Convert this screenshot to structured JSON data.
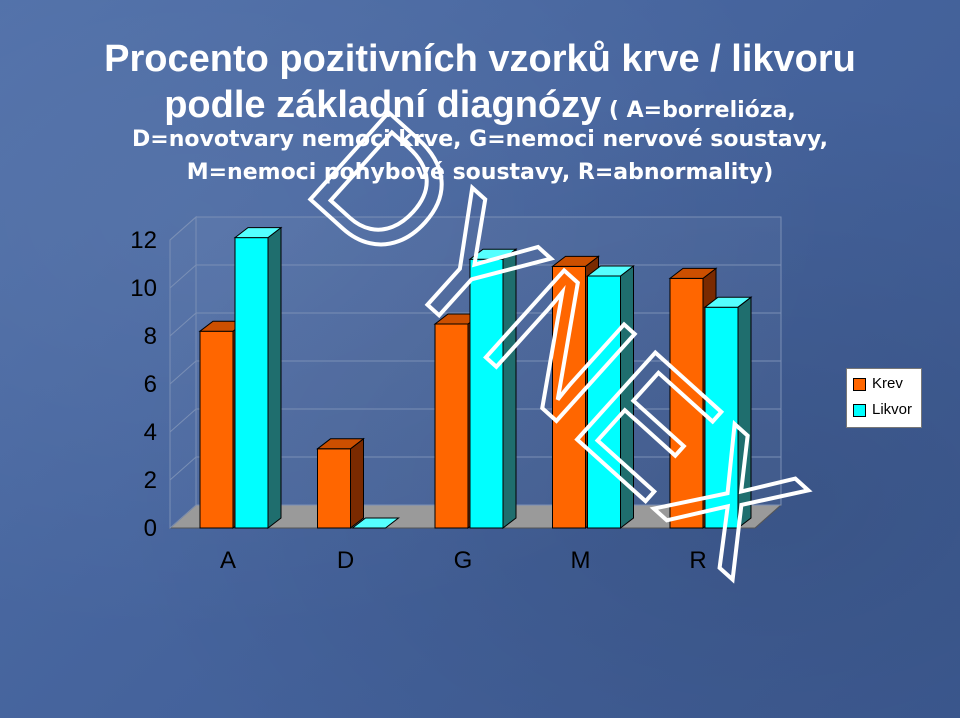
{
  "title": {
    "line1": "Procento pozitivních vzorků krve / likvoru",
    "line2_main": "podle základní diagnózy",
    "line2_rest": " ( A=borrelióza,",
    "line3": "D=novotvary nemoci krve, G=nemoci nervové soustavy,",
    "line4": "M=nemoci pohybové soustavy, R=abnormality)"
  },
  "watermark": "DYNEX",
  "chart_data": {
    "type": "bar",
    "categories": [
      "A",
      "D",
      "G",
      "M",
      "R"
    ],
    "series": [
      {
        "name": "Krev",
        "values": [
          8.2,
          3.3,
          8.5,
          10.9,
          10.4
        ],
        "color": "#ff6600"
      },
      {
        "name": "Likvor",
        "values": [
          12.1,
          0,
          11.2,
          10.5,
          9.2
        ],
        "color": "#00ffff"
      }
    ],
    "ylim": [
      0,
      12
    ],
    "yticks": [
      "0",
      "2",
      "4",
      "6",
      "8",
      "10",
      "12"
    ],
    "grid": true,
    "legend_position": "right",
    "style": "3d-clustered"
  }
}
